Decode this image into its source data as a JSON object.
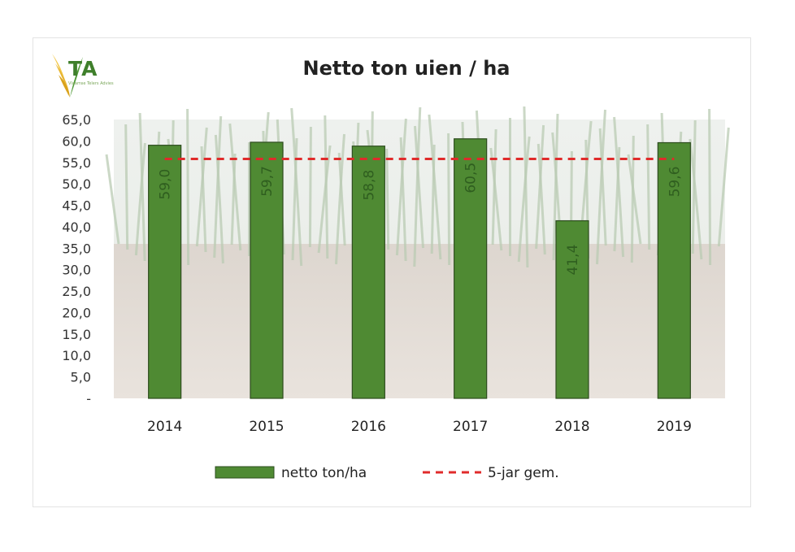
{
  "logo": {
    "text": "TA",
    "subtitle": "Vlaamse Telers Advies"
  },
  "chart_data": {
    "type": "bar",
    "title": "Netto ton uien / ha",
    "categories": [
      "2014",
      "2015",
      "2016",
      "2017",
      "2018",
      "2019"
    ],
    "series": [
      {
        "name": "netto ton/ha",
        "type": "bar",
        "color": "#4f8a33",
        "values": [
          59.0,
          59.7,
          58.8,
          60.5,
          41.4,
          59.6
        ],
        "labels": [
          "59,0",
          "59,7",
          "58,8",
          "60,5",
          "41,4",
          "59,6"
        ]
      },
      {
        "name": "5-jar gem.",
        "type": "line",
        "style": "dashed",
        "color": "#e02b2b",
        "value": 55.8
      }
    ],
    "ylim": [
      0,
      65
    ],
    "yticks": [
      "-",
      "5,0",
      "10,0",
      "15,0",
      "20,0",
      "25,0",
      "30,0",
      "35,0",
      "40,0",
      "45,0",
      "50,0",
      "55,0",
      "60,0",
      "65,0"
    ],
    "legend": "bottom",
    "grid": false,
    "background": "photo of onion field"
  }
}
